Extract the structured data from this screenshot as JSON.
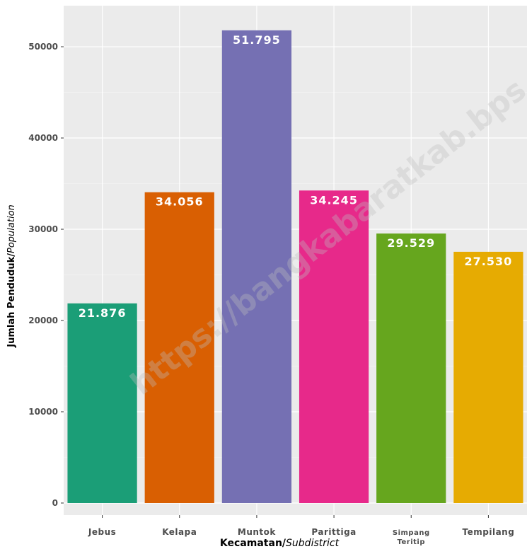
{
  "chart_data": {
    "type": "bar",
    "categories": [
      "Jebus",
      "Kelapa",
      "Muntok",
      "Parittiga",
      "Simpang Teritip",
      "Tempilang"
    ],
    "values": [
      21876,
      34056,
      51795,
      34245,
      29529,
      27530
    ],
    "data_labels": [
      "21.876",
      "34.056",
      "51.795",
      "34.245",
      "29.529",
      "27.530"
    ],
    "colors": [
      "#1b9e77",
      "#d95f02",
      "#7570b3",
      "#e7298a",
      "#66a61e",
      "#e6ab02"
    ],
    "yticks": [
      0,
      10000,
      20000,
      30000,
      40000,
      50000
    ],
    "ytick_labels": [
      "0",
      "10000",
      "20000",
      "30000",
      "40000",
      "50000"
    ],
    "ylim": [
      0,
      54500
    ],
    "xlabel": {
      "main": "Kecamatan/",
      "italic": "Subdistrict"
    },
    "ylabel": {
      "main": "Jumlah Penduduk/",
      "italic": "Population"
    },
    "grid": true,
    "legend": "none",
    "watermark": "https://bangkabaratkab.bps.go.id"
  }
}
